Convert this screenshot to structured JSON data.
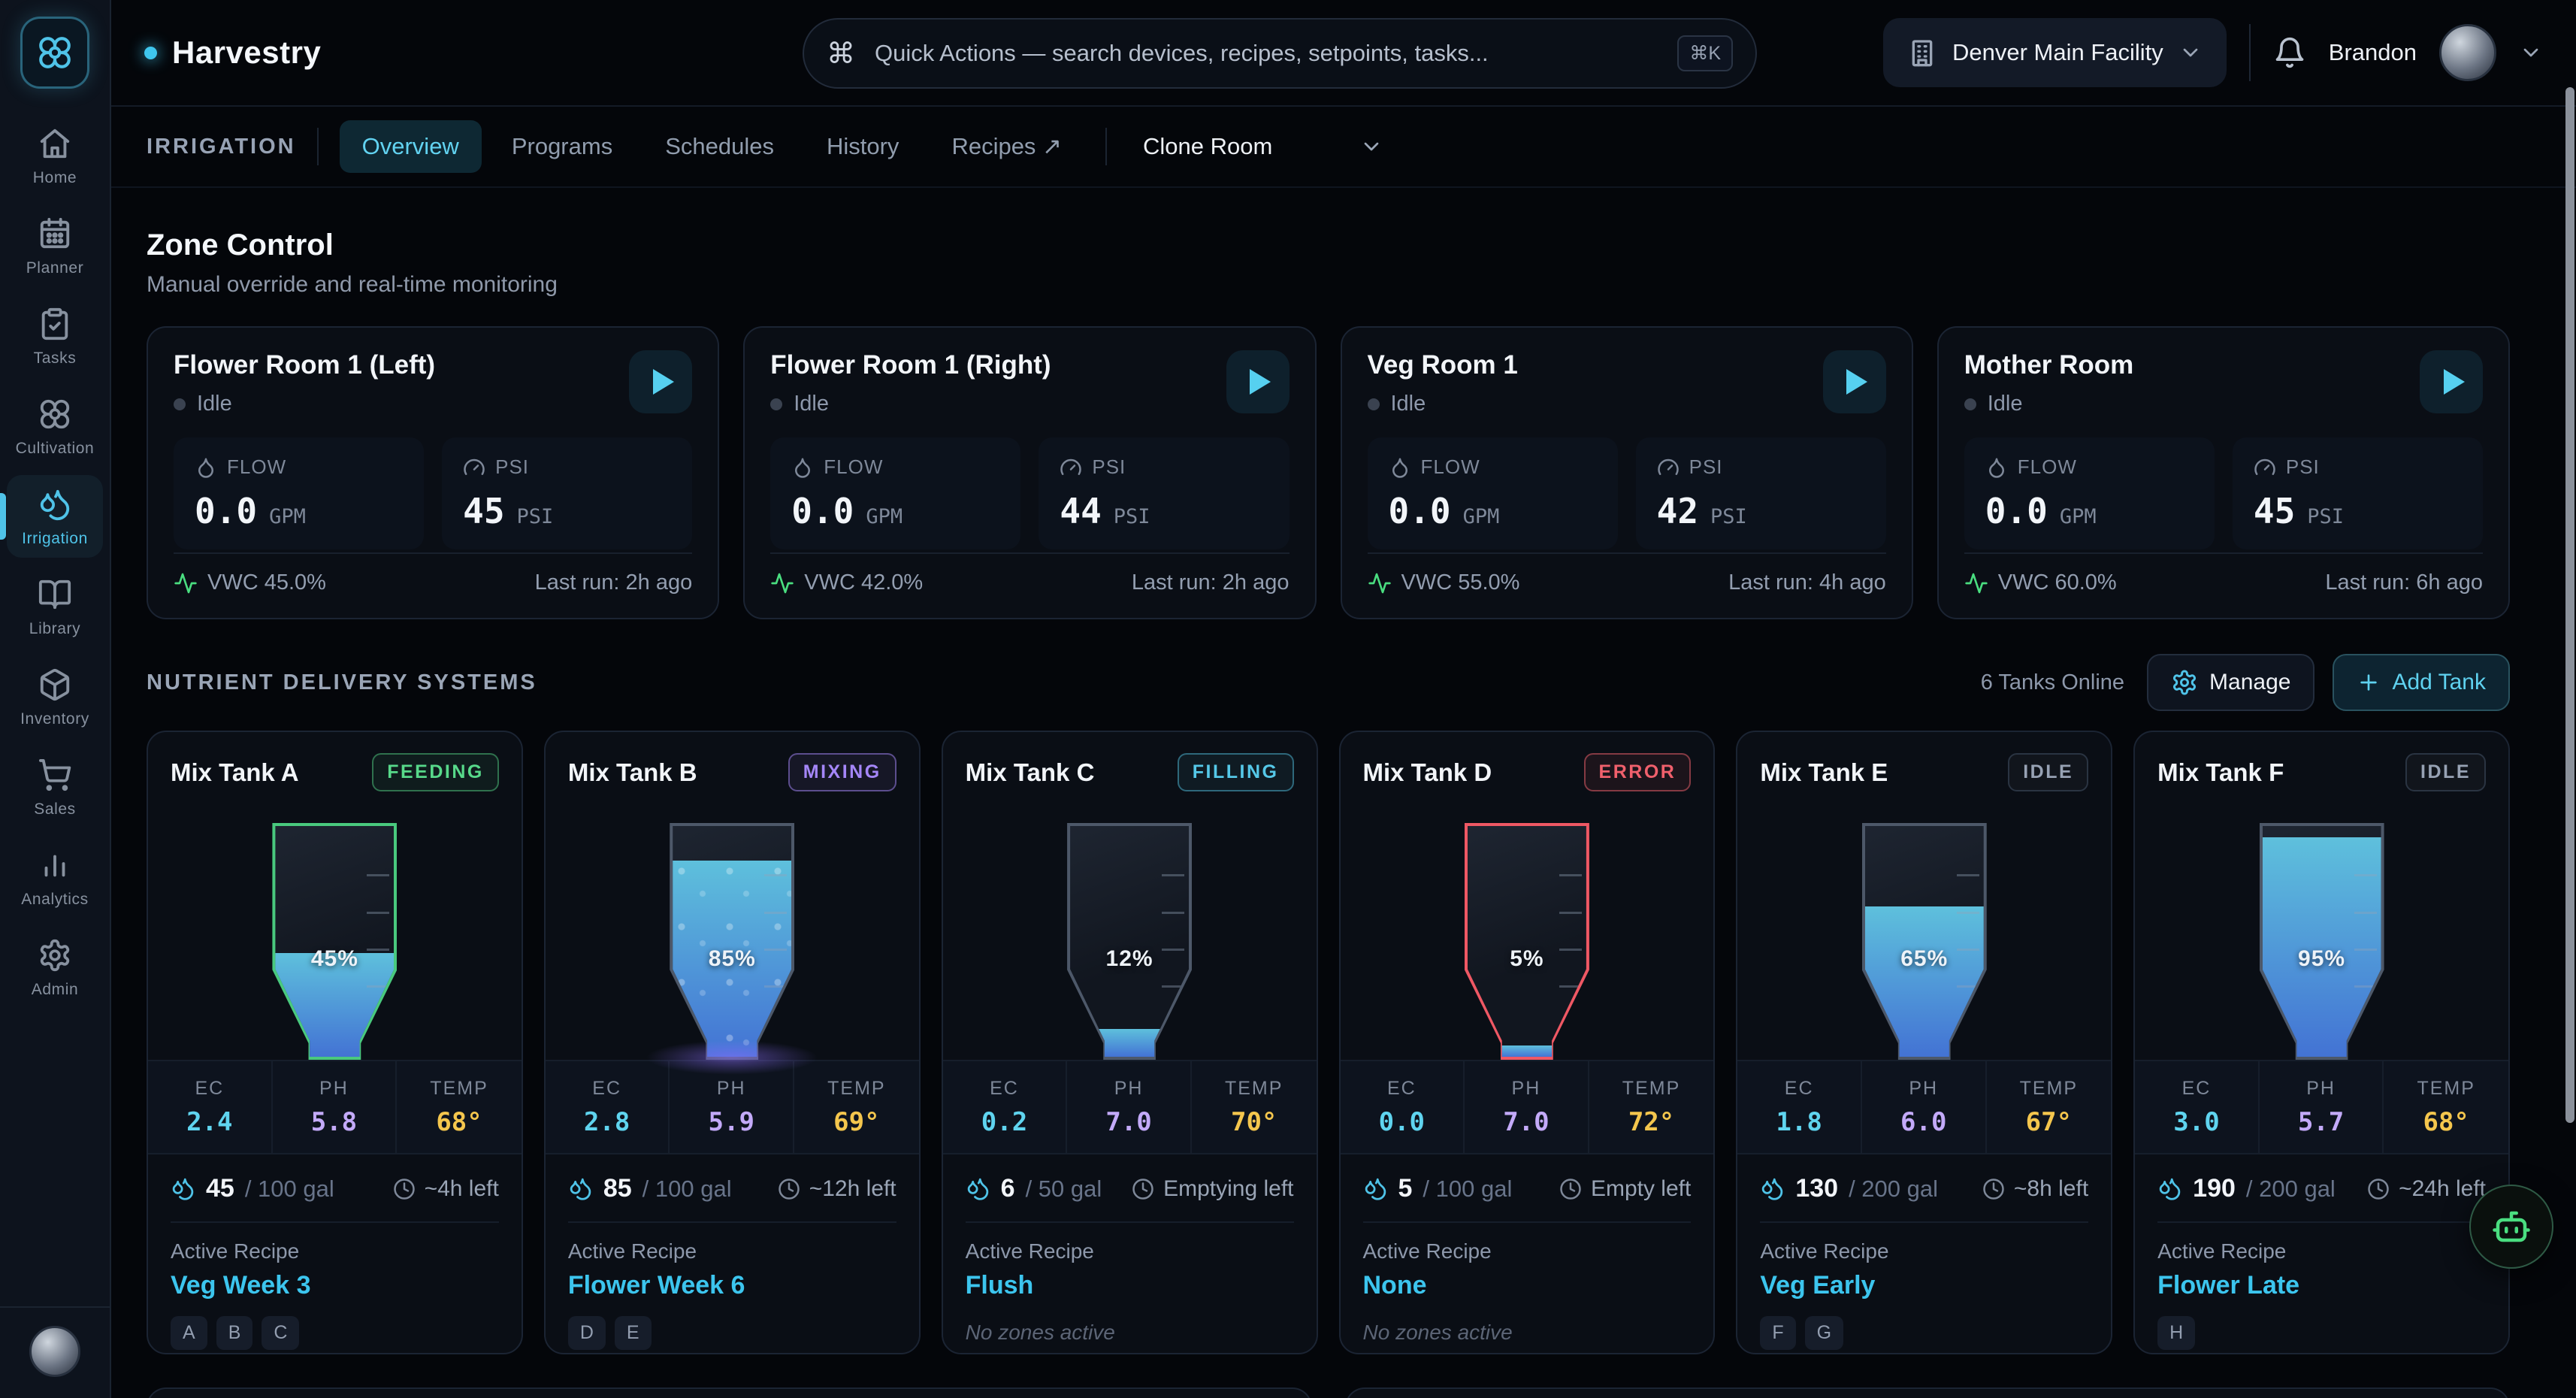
{
  "app": {
    "name": "Harvestry"
  },
  "colors": {
    "accent_cyan": "#4fc3e8",
    "recipe_cyan": "#3cc5ee",
    "feeding_green": "#57d98a",
    "mixing_purple": "#a486f7",
    "filling_cyan": "#55c8e8",
    "error_red": "#f0606c",
    "idle_grey": "#97a2b4",
    "ec_value": "#5fd4ef",
    "ph_value": "#c3aaf9",
    "temp_value": "#f4c64d",
    "liquid_top": "#5ec0dc",
    "liquid_bottom": "#4373d4"
  },
  "header": {
    "search_placeholder": "Quick Actions — search devices, recipes, setpoints, tasks...",
    "search_cmd_glyph": "⌘",
    "search_shortcut": "⌘K",
    "facility": "Denver Main Facility",
    "user": "Brandon"
  },
  "sidebar": {
    "items": [
      {
        "label": "Home",
        "active": false
      },
      {
        "label": "Planner",
        "active": false
      },
      {
        "label": "Tasks",
        "active": false
      },
      {
        "label": "Cultivation",
        "active": false
      },
      {
        "label": "Irrigation",
        "active": true
      },
      {
        "label": "Library",
        "active": false
      },
      {
        "label": "Inventory",
        "active": false
      },
      {
        "label": "Sales",
        "active": false
      },
      {
        "label": "Analytics",
        "active": false
      },
      {
        "label": "Admin",
        "active": false
      }
    ]
  },
  "subnav": {
    "section": "IRRIGATION",
    "active_index": 0,
    "tabs": [
      {
        "label": "Overview"
      },
      {
        "label": "Programs"
      },
      {
        "label": "Schedules"
      },
      {
        "label": "History"
      },
      {
        "label": "Recipes ↗"
      }
    ],
    "room": "Clone Room"
  },
  "zone_control": {
    "title": "Zone Control",
    "subtitle": "Manual override and real-time monitoring",
    "labels": {
      "flow": "FLOW",
      "flow_unit": "GPM",
      "psi": "PSI",
      "psi_unit": "PSI"
    },
    "zones": [
      {
        "name": "Flower Room 1 (Left)",
        "status": "Idle",
        "flow": "0.0",
        "psi": "45",
        "vwc": "VWC 45.0%",
        "last_run": "Last run: 2h ago"
      },
      {
        "name": "Flower Room 1 (Right)",
        "status": "Idle",
        "flow": "0.0",
        "psi": "44",
        "vwc": "VWC 42.0%",
        "last_run": "Last run: 2h ago"
      },
      {
        "name": "Veg Room 1",
        "status": "Idle",
        "flow": "0.0",
        "psi": "42",
        "vwc": "VWC 55.0%",
        "last_run": "Last run: 4h ago"
      },
      {
        "name": "Mother Room",
        "status": "Idle",
        "flow": "0.0",
        "psi": "45",
        "vwc": "VWC 60.0%",
        "last_run": "Last run: 6h ago"
      }
    ]
  },
  "nutrients": {
    "title": "NUTRIENT DELIVERY SYSTEMS",
    "status": "6 Tanks Online",
    "manage_label": "Manage",
    "add_label": "Add Tank",
    "metric_labels": {
      "ec": "EC",
      "ph": "PH",
      "temp": "TEMP"
    },
    "recipe_label": "Active Recipe",
    "no_zones_label": "No zones active",
    "tanks": [
      {
        "name": "Mix Tank A",
        "state": "feeding",
        "state_label": "FEEDING",
        "level_pct": 45,
        "level_label": "45%",
        "ec": "2.4",
        "ph": "5.8",
        "temp": "68°",
        "volume": "45",
        "capacity": "/ 100 gal",
        "time_left": "~4h left",
        "recipe": "Veg Week 3",
        "zones": [
          "A",
          "B",
          "C"
        ]
      },
      {
        "name": "Mix Tank B",
        "state": "mixing",
        "state_label": "MIXING",
        "level_pct": 85,
        "level_label": "85%",
        "ec": "2.8",
        "ph": "5.9",
        "temp": "69°",
        "volume": "85",
        "capacity": "/ 100 gal",
        "time_left": "~12h left",
        "recipe": "Flower Week 6",
        "zones": [
          "D",
          "E"
        ]
      },
      {
        "name": "Mix Tank C",
        "state": "filling",
        "state_label": "FILLING",
        "level_pct": 12,
        "level_label": "12%",
        "ec": "0.2",
        "ph": "7.0",
        "temp": "70°",
        "volume": "6",
        "capacity": "/ 50 gal",
        "time_left": "Emptying left",
        "recipe": "Flush",
        "zones": []
      },
      {
        "name": "Mix Tank D",
        "state": "error",
        "state_label": "ERROR",
        "level_pct": 5,
        "level_label": "5%",
        "ec": "0.0",
        "ph": "7.0",
        "temp": "72°",
        "volume": "5",
        "capacity": "/ 100 gal",
        "time_left": "Empty left",
        "recipe": "None",
        "zones": []
      },
      {
        "name": "Mix Tank E",
        "state": "idle",
        "state_label": "IDLE",
        "level_pct": 65,
        "level_label": "65%",
        "ec": "1.8",
        "ph": "6.0",
        "temp": "67°",
        "volume": "130",
        "capacity": "/ 200 gal",
        "time_left": "~8h left",
        "recipe": "Veg Early",
        "zones": [
          "F",
          "G"
        ]
      },
      {
        "name": "Mix Tank F",
        "state": "idle",
        "state_label": "IDLE",
        "level_pct": 95,
        "level_label": "95%",
        "ec": "3.0",
        "ph": "5.7",
        "temp": "68°",
        "volume": "190",
        "capacity": "/ 200 gal",
        "time_left": "~24h left",
        "recipe": "Flower Late",
        "zones": [
          "H"
        ]
      }
    ]
  }
}
